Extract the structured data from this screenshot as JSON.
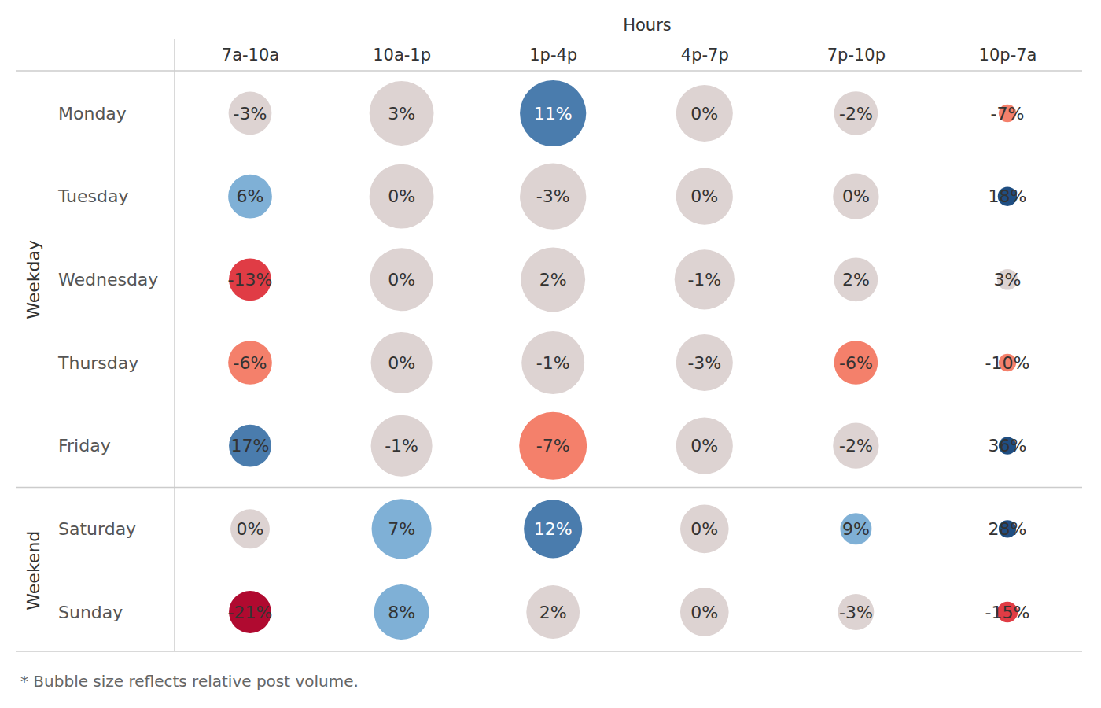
{
  "chart_data": {
    "type": "bubble_matrix",
    "x_title": "Hours",
    "categories": [
      "7a-10a",
      "10a-1p",
      "1p-4p",
      "4p-7p",
      "7p-10p",
      "10p-7a"
    ],
    "groups": [
      {
        "name": "Weekday",
        "rows": [
          "Monday",
          "Tuesday",
          "Wednesday",
          "Thursday",
          "Friday"
        ]
      },
      {
        "name": "Weekend",
        "rows": [
          "Saturday",
          "Sunday"
        ]
      }
    ],
    "values": [
      [
        -3,
        3,
        11,
        0,
        -2,
        -7
      ],
      [
        6,
        0,
        -3,
        0,
        0,
        18
      ],
      [
        -13,
        0,
        2,
        -1,
        2,
        3
      ],
      [
        -6,
        0,
        -1,
        -3,
        -6,
        -10
      ],
      [
        17,
        -1,
        -7,
        0,
        -2,
        36
      ],
      [
        0,
        7,
        12,
        0,
        9,
        28
      ],
      [
        -21,
        8,
        2,
        0,
        -3,
        -15
      ]
    ],
    "value_labels": [
      [
        "-3%",
        "3%",
        "11%",
        "0%",
        "-2%",
        "-7%"
      ],
      [
        "6%",
        "0%",
        "-3%",
        "0%",
        "0%",
        "18%"
      ],
      [
        "-13%",
        "0%",
        "2%",
        "-1%",
        "2%",
        "3%"
      ],
      [
        "-6%",
        "0%",
        "-1%",
        "-3%",
        "-6%",
        "-10%"
      ],
      [
        "17%",
        "-1%",
        "-7%",
        "0%",
        "-2%",
        "36%"
      ],
      [
        "0%",
        "7%",
        "12%",
        "0%",
        "9%",
        "28%"
      ],
      [
        "-21%",
        "8%",
        "2%",
        "0%",
        "-3%",
        "-15%"
      ]
    ],
    "sizes": [
      [
        30,
        67,
        71,
        52,
        31,
        5
      ],
      [
        31,
        67,
        71,
        52,
        34,
        6
      ],
      [
        29,
        64,
        67,
        58,
        31,
        7
      ],
      [
        31,
        61,
        64,
        52,
        31,
        5
      ],
      [
        29,
        61,
        74,
        52,
        34,
        5
      ],
      [
        25,
        58,
        55,
        38,
        16,
        5
      ],
      [
        29,
        49,
        46,
        38,
        21,
        7
      ]
    ],
    "colors": [
      [
        "#ddd3d2",
        "#ddd3d2",
        "#4a7cad",
        "#ddd3d2",
        "#ddd3d2",
        "#f4806b"
      ],
      [
        "#7fb0d6",
        "#ddd3d2",
        "#ddd3d2",
        "#ddd3d2",
        "#ddd3d2",
        "#1f4e82"
      ],
      [
        "#e03c45",
        "#ddd3d2",
        "#ddd3d2",
        "#ddd3d2",
        "#ddd3d2",
        "#ddd3d2"
      ],
      [
        "#f4806b",
        "#ddd3d2",
        "#ddd3d2",
        "#ddd3d2",
        "#f4806b",
        "#f4806b"
      ],
      [
        "#4a7cad",
        "#ddd3d2",
        "#f4806b",
        "#ddd3d2",
        "#ddd3d2",
        "#1f4e82"
      ],
      [
        "#ddd3d2",
        "#7fb0d6",
        "#4a7cad",
        "#ddd3d2",
        "#7fb0d6",
        "#1f4e82"
      ],
      [
        "#b00a30",
        "#7fb0d6",
        "#ddd3d2",
        "#ddd3d2",
        "#ddd3d2",
        "#e03c45"
      ]
    ],
    "data_labels": true,
    "note": "* Bubble size reflects relative post volume."
  }
}
